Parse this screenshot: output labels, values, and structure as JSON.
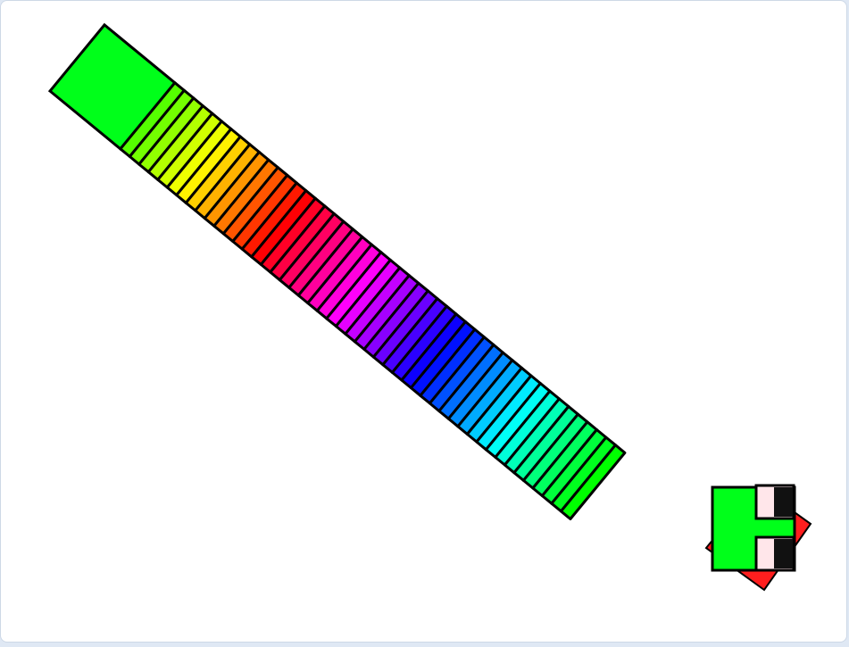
{
  "game": {
    "colors": {
      "stage_background": "#ffffff",
      "outline": "#000000",
      "tongue": "#ff1e1e",
      "head": "#00ff1a",
      "eye_white": "#ffe6ea",
      "pupil": "#111111"
    },
    "snake": {
      "segment_count": 48,
      "tail_color": "#00ff1a",
      "head_icon": "snake-head-icon",
      "tongue_icon": "tongue-icon",
      "eye_icon": "eye-icon"
    }
  }
}
